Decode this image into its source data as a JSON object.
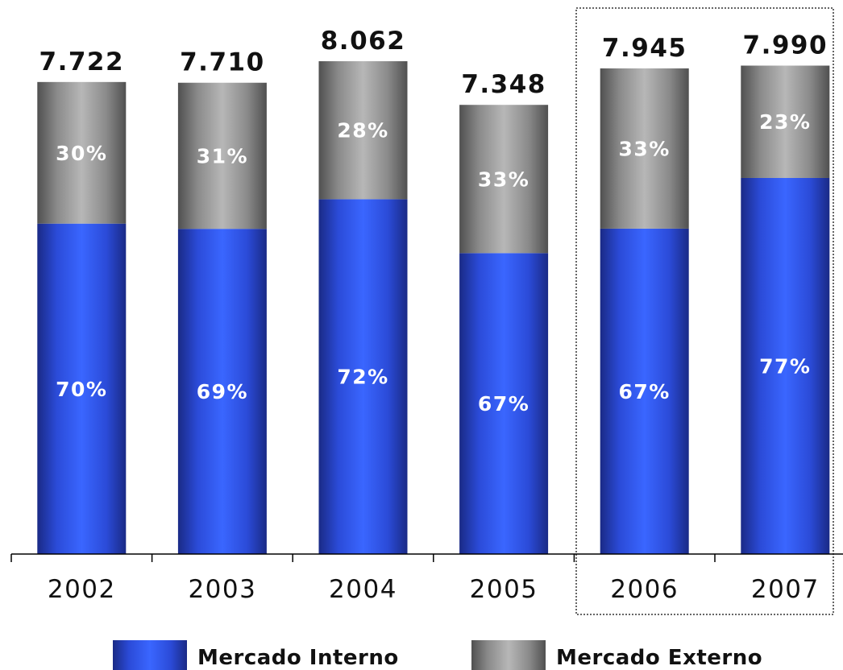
{
  "chart_data": {
    "type": "bar",
    "stacked": true,
    "categories": [
      "2002",
      "2003",
      "2004",
      "2005",
      "2006",
      "2007"
    ],
    "totals": [
      7722,
      7710,
      8062,
      7348,
      7945,
      7990
    ],
    "total_labels": [
      "7.722",
      "7.710",
      "8.062",
      "7.348",
      "7.945",
      "7.990"
    ],
    "series": [
      {
        "name": "Mercado Interno",
        "percent": [
          70,
          69,
          72,
          67,
          67,
          77
        ],
        "labels": [
          "70%",
          "69%",
          "72%",
          "67%",
          "67%",
          "77%"
        ],
        "color": "#3355ee"
      },
      {
        "name": "Mercado Externo",
        "percent": [
          30,
          31,
          28,
          33,
          33,
          23
        ],
        "labels": [
          "30%",
          "31%",
          "28%",
          "33%",
          "33%",
          "23%"
        ],
        "color": "#9a9a9a"
      }
    ],
    "ylim": [
      0,
      8800
    ],
    "highlight_categories": [
      "2006",
      "2007"
    ],
    "legend_position": "bottom",
    "grid": false
  }
}
